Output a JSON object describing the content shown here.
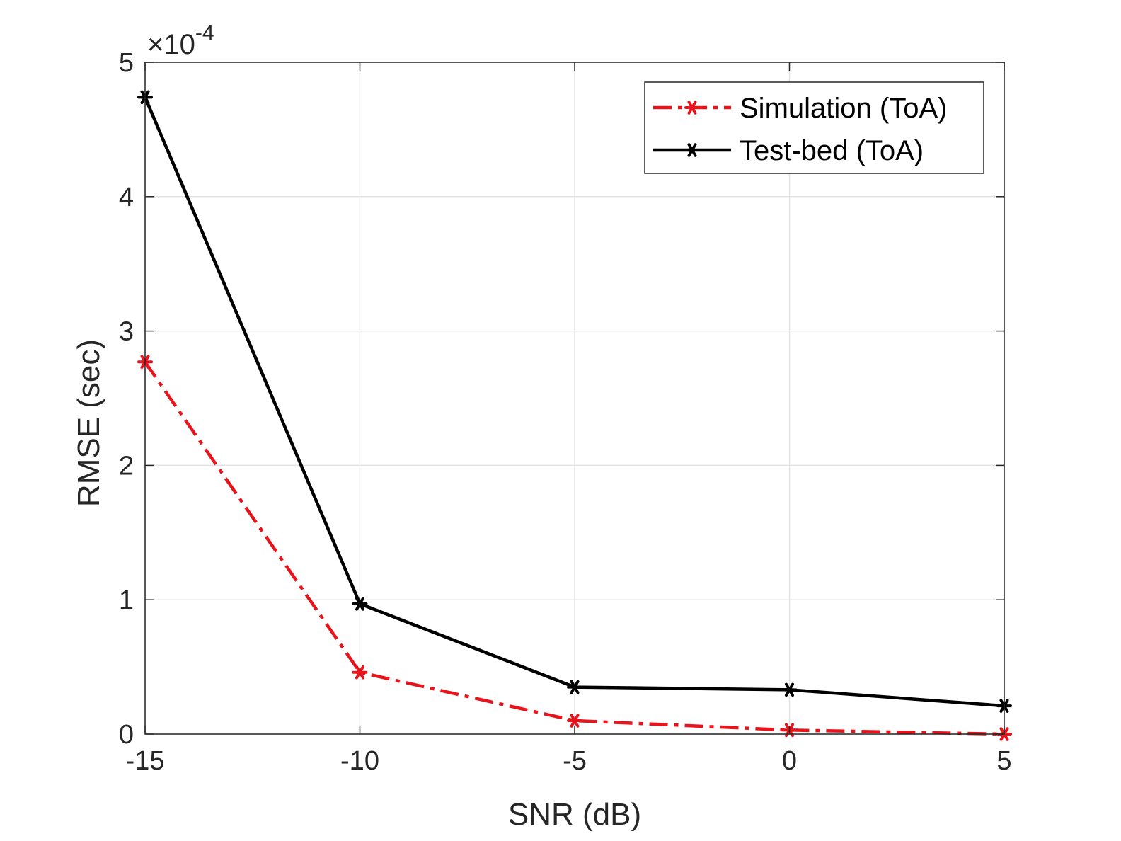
{
  "chart_data": {
    "type": "line",
    "title": "",
    "xlabel": "SNR (dB)",
    "ylabel": "RMSE (sec)",
    "y_exponent_label": {
      "times": "×10",
      "power": "-4"
    },
    "x": [
      -15,
      -10,
      -5,
      0,
      5
    ],
    "xlim": [
      -15,
      5
    ],
    "ylim": [
      0,
      5
    ],
    "x_ticks": [
      -15,
      -10,
      -5,
      0,
      5
    ],
    "x_tick_labels": [
      "-15",
      "-10",
      "-5",
      "0",
      "5"
    ],
    "y_ticks": [
      0,
      1,
      2,
      3,
      4,
      5
    ],
    "y_tick_labels": [
      "0",
      "1",
      "2",
      "3",
      "4",
      "5"
    ],
    "y_scale_factor": 0.0001,
    "grid": true,
    "legend_position": "top-right",
    "series": [
      {
        "name": "Simulation (ToA)",
        "values": [
          2.77,
          0.46,
          0.1,
          0.03,
          0.0
        ],
        "color": "#e8141b",
        "line_style": "dash-dot",
        "marker": "asterisk"
      },
      {
        "name": "Test-bed (ToA)",
        "values": [
          4.74,
          0.97,
          0.35,
          0.33,
          0.21
        ],
        "color": "#000000",
        "line_style": "solid",
        "marker": "asterisk"
      }
    ]
  }
}
